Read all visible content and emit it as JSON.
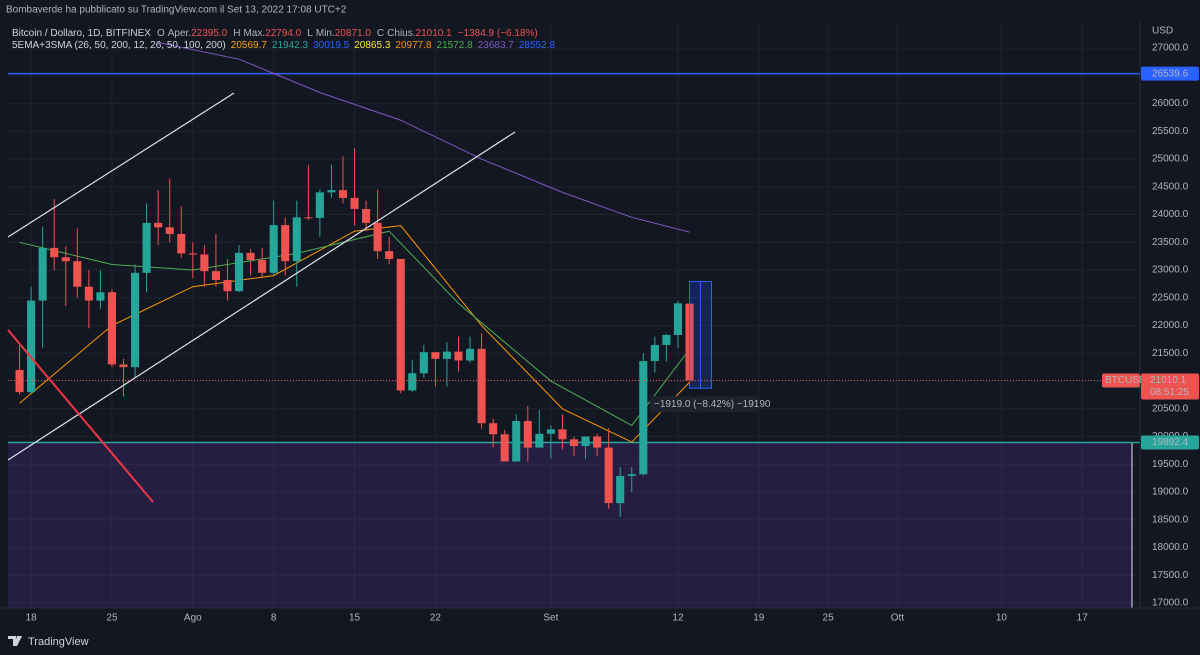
{
  "header": "Bombaverde ha pubblicato su TradingView.com il Set 13, 2022 17:08 UTC+2",
  "footer": "TradingView",
  "chart_data": {
    "type": "candlestick",
    "legend": {
      "symbol": "Bitcoin / Dollaro, 1D, BITFINEX",
      "items": [
        {
          "key": "O",
          "label": "Aper.",
          "value": "22395.0"
        },
        {
          "key": "H",
          "label": "Max.",
          "value": "22794.0"
        },
        {
          "key": "L",
          "label": "Min.",
          "value": "20871.0"
        },
        {
          "key": "C",
          "label": "Chius.",
          "value": "21010.1"
        }
      ],
      "change": "−1384.9 (−6.18%)"
    },
    "indicator": {
      "name": "5EMA+3SMA (26, 50, 200, 12, 26, 50, 100, 200)",
      "values": [
        {
          "text": "20569.7",
          "color": "#f7a21b"
        },
        {
          "text": "21942.3",
          "color": "#26a69a"
        },
        {
          "text": "30019.5",
          "color": "#2962ff"
        },
        {
          "text": "20865.3",
          "color": "#ffeb3b"
        },
        {
          "text": "20977.8",
          "color": "#ff9800"
        },
        {
          "text": "21572.8",
          "color": "#4caf50"
        },
        {
          "text": "23683.7",
          "color": "#7e57c2"
        },
        {
          "text": "28552.8",
          "color": "#2962ff"
        }
      ]
    },
    "symbol_tag": "BTCUSD",
    "countdown": "08:51:25",
    "unit": "USD",
    "measure_label": "−1919.0 (−8.42%) −19190",
    "up_color": "#26a69a",
    "down_color": "#ef5350",
    "x": [
      "2022-07-17",
      "2022-07-18",
      "2022-07-19",
      "2022-07-20",
      "2022-07-21",
      "2022-07-22",
      "2022-07-23",
      "2022-07-24",
      "2022-07-25",
      "2022-07-26",
      "2022-07-27",
      "2022-07-28",
      "2022-07-29",
      "2022-07-30",
      "2022-07-31",
      "2022-08-01",
      "2022-08-02",
      "2022-08-03",
      "2022-08-04",
      "2022-08-05",
      "2022-08-06",
      "2022-08-07",
      "2022-08-08",
      "2022-08-09",
      "2022-08-10",
      "2022-08-11",
      "2022-08-12",
      "2022-08-13",
      "2022-08-14",
      "2022-08-15",
      "2022-08-16",
      "2022-08-17",
      "2022-08-18",
      "2022-08-19",
      "2022-08-20",
      "2022-08-21",
      "2022-08-22",
      "2022-08-23",
      "2022-08-24",
      "2022-08-25",
      "2022-08-26",
      "2022-08-27",
      "2022-08-28",
      "2022-08-29",
      "2022-08-30",
      "2022-08-31",
      "2022-09-01",
      "2022-09-02",
      "2022-09-03",
      "2022-09-04",
      "2022-09-05",
      "2022-09-06",
      "2022-09-07",
      "2022-09-08",
      "2022-09-09",
      "2022-09-10",
      "2022-09-11",
      "2022-09-12",
      "2022-09-13"
    ],
    "open": [
      21200,
      20800,
      22450,
      23400,
      23230,
      23160,
      22700,
      22450,
      22600,
      21300,
      21250,
      22950,
      23850,
      23770,
      23650,
      23300,
      23280,
      22980,
      22820,
      22620,
      23310,
      23180,
      22950,
      23810,
      23160,
      23950,
      23940,
      24400,
      24440,
      24300,
      24100,
      23850,
      23340,
      23200,
      20830,
      21140,
      21520,
      21400,
      21530,
      21370,
      21580,
      20240,
      20040,
      19550,
      20280,
      19800,
      20050,
      20130,
      19950,
      19830,
      20000,
      19800,
      18800,
      19290,
      19320,
      21360,
      21650,
      21830,
      22395
    ],
    "high": [
      21650,
      22700,
      23780,
      24280,
      23430,
      23750,
      23000,
      23000,
      22650,
      21400,
      23100,
      24200,
      24440,
      24650,
      24150,
      23500,
      23450,
      23650,
      23200,
      23450,
      23380,
      23400,
      24250,
      23950,
      24250,
      24900,
      24450,
      24900,
      25050,
      25200,
      24250,
      24450,
      23600,
      23200,
      21380,
      21650,
      21520,
      21700,
      21800,
      21800,
      21860,
      20320,
      20120,
      20400,
      20550,
      20480,
      20200,
      20400,
      20000,
      20000,
      20050,
      20150,
      19450,
      19450,
      21500,
      21800,
      21850,
      22450,
      22794
    ],
    "low": [
      20760,
      20770,
      21600,
      23000,
      22350,
      22500,
      21950,
      22300,
      21250,
      20720,
      21050,
      22600,
      23450,
      23500,
      23220,
      22850,
      22700,
      22700,
      22450,
      22600,
      22900,
      22850,
      22900,
      22900,
      22700,
      23900,
      23600,
      24300,
      24200,
      23800,
      23700,
      23200,
      23100,
      20780,
      20800,
      21060,
      20900,
      20900,
      21170,
      21330,
      20140,
      19800,
      19550,
      19550,
      19550,
      19800,
      19600,
      19770,
      19650,
      19600,
      19650,
      18700,
      18550,
      19000,
      19300,
      21150,
      21350,
      21600,
      20871
    ],
    "close": [
      20800,
      22450,
      23400,
      23230,
      23160,
      22700,
      22450,
      22600,
      21300,
      21250,
      22950,
      23850,
      23770,
      23650,
      23300,
      23280,
      22980,
      22820,
      22620,
      23310,
      23180,
      22950,
      23810,
      23160,
      23950,
      23940,
      24400,
      24440,
      24300,
      24100,
      23850,
      23340,
      23200,
      20830,
      21140,
      21520,
      21400,
      21530,
      21370,
      21580,
      20240,
      20040,
      19550,
      20280,
      19800,
      20050,
      20130,
      19950,
      19830,
      20000,
      19800,
      18800,
      19290,
      19320,
      21360,
      21650,
      21830,
      22400,
      21010.1
    ],
    "lines": [
      {
        "color": "#7e57c2",
        "x": [
          "2022-07-29",
          "2022-08-05",
          "2022-08-12",
          "2022-08-19",
          "2022-08-26",
          "2022-09-02",
          "2022-09-08",
          "2022-09-13"
        ],
        "values": [
          27100,
          26800,
          26200,
          25700,
          25000,
          24400,
          23950,
          23683.7
        ]
      },
      {
        "color": "#ff9800",
        "x": [
          "2022-07-17",
          "2022-07-25",
          "2022-08-01",
          "2022-08-08",
          "2022-08-15",
          "2022-08-19",
          "2022-08-26",
          "2022-09-02",
          "2022-09-08",
          "2022-09-13"
        ],
        "values": [
          20600,
          22000,
          22700,
          22900,
          23700,
          23800,
          22000,
          20500,
          19900,
          20977.8
        ]
      },
      {
        "color": "#4caf50",
        "x": [
          "2022-07-17",
          "2022-07-25",
          "2022-08-01",
          "2022-08-10",
          "2022-08-18",
          "2022-08-24",
          "2022-09-01",
          "2022-09-08",
          "2022-09-13"
        ],
        "values": [
          23500,
          23100,
          23000,
          23300,
          23700,
          22400,
          21000,
          20200,
          21572.8
        ]
      }
    ],
    "levels": [
      {
        "value": 26539.6,
        "color": "#2962ff"
      },
      {
        "value": 19892.4,
        "color": "#26a69a"
      }
    ],
    "xlim": [
      "2022-07-16",
      "2022-10-22"
    ],
    "xticks": [
      {
        "value": "2022-07-18",
        "label": "18"
      },
      {
        "value": "2022-07-25",
        "label": "25"
      },
      {
        "value": "2022-08-01",
        "label": "Ago"
      },
      {
        "value": "2022-08-08",
        "label": "8"
      },
      {
        "value": "2022-08-15",
        "label": "15"
      },
      {
        "value": "2022-08-22",
        "label": "22"
      },
      {
        "value": "2022-09-01",
        "label": "Set"
      },
      {
        "value": "2022-09-12",
        "label": "12"
      },
      {
        "value": "2022-09-19",
        "label": "19"
      },
      {
        "value": "2022-09-25",
        "label": "25"
      },
      {
        "value": "2022-10-01",
        "label": "Ott"
      },
      {
        "value": "2022-10-10",
        "label": "10"
      },
      {
        "value": "2022-10-17",
        "label": "17"
      }
    ],
    "ylim": [
      16910,
      27470
    ],
    "yticks": [
      {
        "value": 17000,
        "label": "17000.0"
      },
      {
        "value": 17500,
        "label": "17500.0"
      },
      {
        "value": 18000,
        "label": "18000.0"
      },
      {
        "value": 18500,
        "label": "18500.0"
      },
      {
        "value": 19000,
        "label": "19000.0"
      },
      {
        "value": 19500,
        "label": "19500.0"
      },
      {
        "value": 20000,
        "label": "20000.0"
      },
      {
        "value": 20500,
        "label": "20500.0"
      },
      {
        "value": 21000,
        "label": "21000.0"
      },
      {
        "value": 21500,
        "label": "21500.0"
      },
      {
        "value": 22000,
        "label": "22000.0"
      },
      {
        "value": 22500,
        "label": "22500.0"
      },
      {
        "value": 23000,
        "label": "23000.0"
      },
      {
        "value": 23500,
        "label": "23500.0"
      },
      {
        "value": 24000,
        "label": "24000.0"
      },
      {
        "value": 24500,
        "label": "24500.0"
      },
      {
        "value": 25000,
        "label": "25000.0"
      },
      {
        "value": 25500,
        "label": "25500.0"
      },
      {
        "value": 26000,
        "label": "26000.0"
      },
      {
        "value": 26500,
        "label": "26500.0"
      },
      {
        "value": 27000,
        "label": "27000.0"
      }
    ],
    "grid": true
  }
}
